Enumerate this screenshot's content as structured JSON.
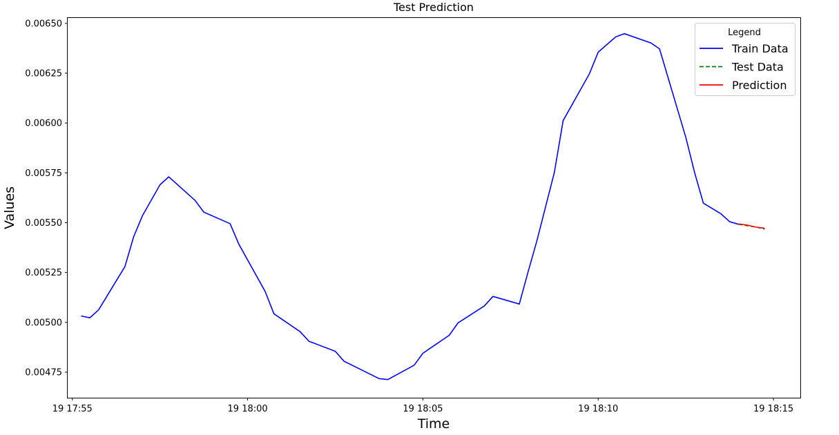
{
  "chart_data": {
    "type": "line",
    "title": "Test Prediction",
    "xlabel": "Time",
    "ylabel": "Values",
    "xlim": [
      "19 17:54:52",
      "19 18:15:46"
    ],
    "ylim": [
      0.004622,
      0.006527
    ],
    "x_ticks": [
      {
        "t": "19 17:55:00",
        "label": "19 17:55"
      },
      {
        "t": "19 18:00:00",
        "label": "19 18:00"
      },
      {
        "t": "19 18:05:00",
        "label": "19 18:05"
      },
      {
        "t": "19 18:10:00",
        "label": "19 18:10"
      },
      {
        "t": "19 18:15:00",
        "label": "19 18:15"
      }
    ],
    "y_ticks": [
      {
        "v": 0.00475,
        "label": "0.00475"
      },
      {
        "v": 0.005,
        "label": "0.00500"
      },
      {
        "v": 0.00525,
        "label": "0.00525"
      },
      {
        "v": 0.0055,
        "label": "0.00550"
      },
      {
        "v": 0.00575,
        "label": "0.00575"
      },
      {
        "v": 0.006,
        "label": "0.00600"
      },
      {
        "v": 0.00625,
        "label": "0.00625"
      },
      {
        "v": 0.0065,
        "label": "0.00650"
      }
    ],
    "legend": {
      "title": "Legend",
      "position": "top-right"
    },
    "grid": false,
    "series": [
      {
        "name": "Train Data",
        "color": "#0000ff",
        "style": "solid",
        "points": [
          [
            "19 17:55:15",
            0.005032
          ],
          [
            "19 17:55:30",
            0.005023
          ],
          [
            "19 17:55:45",
            0.005063
          ],
          [
            "19 17:56:30",
            0.00528
          ],
          [
            "19 17:56:45",
            0.00543
          ],
          [
            "19 17:57:00",
            0.005535
          ],
          [
            "19 17:57:30",
            0.00569
          ],
          [
            "19 17:57:45",
            0.00573
          ],
          [
            "19 17:58:30",
            0.005612
          ],
          [
            "19 17:58:45",
            0.005553
          ],
          [
            "19 17:59:30",
            0.005495
          ],
          [
            "19 17:59:45",
            0.005392
          ],
          [
            "19 18:00:30",
            0.005155
          ],
          [
            "19 18:00:45",
            0.005043
          ],
          [
            "19 18:01:30",
            0.004953
          ],
          [
            "19 18:01:45",
            0.004905
          ],
          [
            "19 18:02:30",
            0.004855
          ],
          [
            "19 18:02:45",
            0.004805
          ],
          [
            "19 18:03:45",
            0.004718
          ],
          [
            "19 18:04:00",
            0.004713
          ],
          [
            "19 18:04:45",
            0.004785
          ],
          [
            "19 18:05:00",
            0.004845
          ],
          [
            "19 18:05:45",
            0.004935
          ],
          [
            "19 18:06:00",
            0.004997
          ],
          [
            "19 18:06:45",
            0.005082
          ],
          [
            "19 18:07:00",
            0.00513
          ],
          [
            "19 18:07:45",
            0.005092
          ],
          [
            "19 18:08:00",
            0.005253
          ],
          [
            "19 18:08:15",
            0.005408
          ],
          [
            "19 18:08:45",
            0.005752
          ],
          [
            "19 18:09:00",
            0.006012
          ],
          [
            "19 18:09:45",
            0.006247
          ],
          [
            "19 18:10:00",
            0.006355
          ],
          [
            "19 18:10:30",
            0.006432
          ],
          [
            "19 18:10:45",
            0.006448
          ],
          [
            "19 18:11:30",
            0.006402
          ],
          [
            "19 18:11:45",
            0.006372
          ],
          [
            "19 18:12:30",
            0.005928
          ],
          [
            "19 18:12:45",
            0.005752
          ],
          [
            "19 18:13:00",
            0.005598
          ],
          [
            "19 18:13:30",
            0.005545
          ],
          [
            "19 18:13:45",
            0.005505
          ],
          [
            "19 18:14:00",
            0.005492
          ]
        ]
      },
      {
        "name": "Test Data",
        "color": "#008000",
        "style": "dashed",
        "points": [
          [
            "19 18:14:00",
            0.005492
          ],
          [
            "19 18:14:15",
            0.005485
          ],
          [
            "19 18:14:30",
            0.005478
          ],
          [
            "19 18:14:45",
            0.005468
          ]
        ]
      },
      {
        "name": "Prediction",
        "color": "#ff0000",
        "style": "solid",
        "points": [
          [
            "19 18:14:00",
            0.005494
          ],
          [
            "19 18:14:15",
            0.005488
          ],
          [
            "19 18:14:30",
            0.005478
          ],
          [
            "19 18:14:45",
            0.005472
          ]
        ]
      }
    ]
  }
}
